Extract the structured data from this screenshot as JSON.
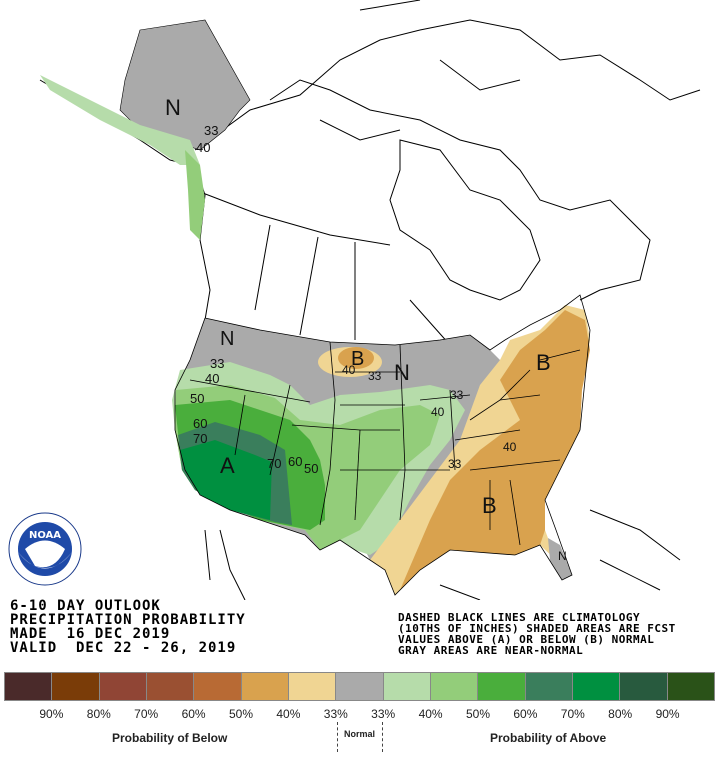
{
  "title_block": {
    "line1": "6-10 DAY OUTLOOK",
    "line2": "PRECIPITATION PROBABILITY",
    "line3": "MADE  16 DEC 2019",
    "line4": "VALID  DEC 22 - 26, 2019"
  },
  "notes": {
    "line1": "DASHED BLACK LINES ARE CLIMATOLOGY",
    "line2": "(10THS OF INCHES) SHADED AREAS ARE FCST",
    "line3": "VALUES ABOVE (A) OR BELOW (B) NORMAL",
    "line4": "GRAY AREAS ARE NEAR-NORMAL"
  },
  "logo": {
    "text": "NOAA",
    "ring_text": "NATIONAL OCEANIC AND ATMOSPHERIC ADMINISTRATION - U.S. DEPARTMENT OF COMMERCE"
  },
  "map_labels": {
    "alaska_n": "N",
    "alaska_33": "33",
    "alaska_40": "40",
    "nw_n": "N",
    "nw_33": "33",
    "nw_40": "40",
    "nw_50": "50",
    "nw_60": "60",
    "nw_70": "70",
    "sw_a": "A",
    "sw_70": "70",
    "sw_60": "60",
    "sw_50": "50",
    "nd_b": "B",
    "nd_40": "40",
    "nd_33": "33",
    "mw_n": "N",
    "gl_33": "33",
    "gl_40": "40",
    "ne_b": "B",
    "se_40": "40",
    "se_33": "33",
    "se_b": "B",
    "fl_n": "N"
  },
  "legend": {
    "colors": [
      "#4a2a2a",
      "#7a3c08",
      "#904535",
      "#9a5032",
      "#b86a34",
      "#d9a24e",
      "#f0d593",
      "#aaaaaa",
      "#b6dcaa",
      "#93cd7a",
      "#4aae3c",
      "#3a7e5c",
      "#009040",
      "#285a3e",
      "#2a5218"
    ],
    "labels": [
      "90%",
      "80%",
      "70%",
      "60%",
      "50%",
      "40%",
      "33%",
      "33%",
      "40%",
      "50%",
      "60%",
      "70%",
      "80%",
      "90%"
    ],
    "below_caption": "Probability of Below",
    "normal_caption": "Normal",
    "above_caption": "Probability of Above"
  }
}
